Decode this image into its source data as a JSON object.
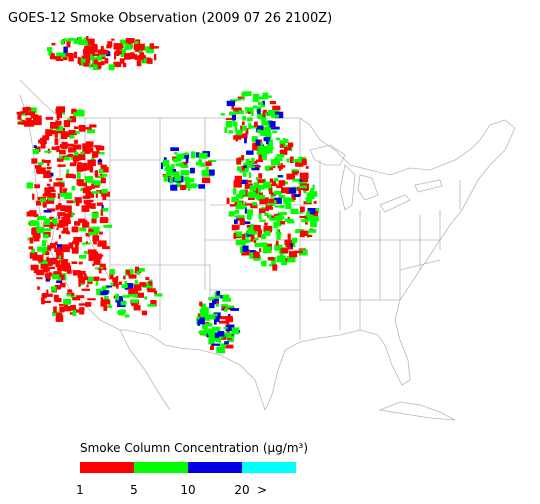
{
  "title": "GOES-12 Smoke Observation (2009 07 26  2100Z)",
  "legend": {
    "title": "Smoke Column Concentration (μg/m³)",
    "colors": [
      "#ff0000",
      "#00ff00",
      "#0000e0",
      "#00ffff"
    ],
    "ticks": [
      1,
      5,
      10,
      20,
      ">"
    ]
  }
}
